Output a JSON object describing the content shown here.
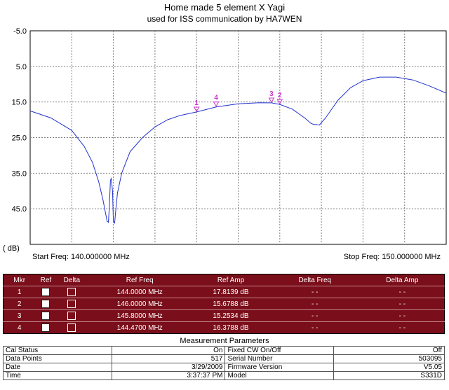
{
  "header": {
    "title": "Home made 5 element X Yagi",
    "subtitle": "used for ISS communication by HA7WEN"
  },
  "chart_data": {
    "type": "line",
    "title": "Home made 5 element X Yagi",
    "subtitle": "used for ISS communication by HA7WEN",
    "ylabel": "( dB)",
    "xlabel": "",
    "x_start_label": "Start Freq: 140.000000 MHz",
    "x_stop_label": "Stop Freq: 150.000000 MHz",
    "xlim": [
      140,
      150
    ],
    "ylim": [
      -5,
      55
    ],
    "y_inverted": true,
    "y_ticks": [
      -5.0,
      5.0,
      15.0,
      25.0,
      35.0,
      45.0
    ],
    "y_tick_labels": [
      "-5.0",
      "5.0",
      "15.0",
      "25.0",
      "35.0",
      "45.0"
    ],
    "grid": true,
    "line_color": "#2233cc",
    "marker_color": "#cc33cc",
    "series": [
      {
        "x": [
          140.0,
          140.5,
          141.0,
          141.3,
          141.5,
          141.65,
          141.75,
          141.8,
          141.85,
          141.88,
          141.9,
          141.93,
          141.95,
          141.98,
          142.0,
          142.03,
          142.06,
          142.1,
          142.2,
          142.4,
          142.7,
          143.0,
          143.3,
          143.6,
          144.0,
          144.47,
          145.0,
          145.5,
          145.8,
          146.0,
          146.3,
          146.6,
          146.75,
          146.82,
          146.88,
          146.95,
          147.1,
          147.4,
          147.7,
          148.0,
          148.4,
          148.8,
          149.2,
          149.6,
          150.0
        ],
        "y": [
          17.5,
          19.5,
          23.0,
          27.5,
          32.0,
          37.5,
          42.5,
          45.5,
          48.5,
          48.8,
          45.0,
          37.0,
          36.5,
          40.0,
          48.5,
          49.0,
          45.0,
          40.5,
          35.0,
          29.0,
          25.0,
          22.0,
          20.0,
          18.8,
          17.8,
          16.4,
          15.5,
          15.2,
          15.25,
          15.68,
          17.0,
          19.5,
          21.0,
          21.3,
          21.3,
          21.5,
          19.5,
          14.5,
          11.0,
          9.0,
          8.0,
          8.0,
          8.8,
          10.5,
          12.5
        ]
      }
    ],
    "markers": [
      {
        "label": "1",
        "x": 144.0,
        "y": 17.8139
      },
      {
        "label": "2",
        "x": 146.0,
        "y": 15.6788
      },
      {
        "label": "3",
        "x": 145.8,
        "y": 15.2534
      },
      {
        "label": "4",
        "x": 144.47,
        "y": 16.3788
      }
    ]
  },
  "marker_table": {
    "headers": [
      "Mkr",
      "Ref",
      "Delta",
      "Ref Freq",
      "Ref Amp",
      "Delta Freq",
      "Delta Amp"
    ],
    "rows": [
      {
        "mkr": "1",
        "ref_freq": "144.0000 MHz",
        "ref_amp": "17.8139 dB",
        "delta_freq": "- -",
        "delta_amp": "- -"
      },
      {
        "mkr": "2",
        "ref_freq": "146.0000 MHz",
        "ref_amp": "15.6788 dB",
        "delta_freq": "- -",
        "delta_amp": "- -"
      },
      {
        "mkr": "3",
        "ref_freq": "145.8000 MHz",
        "ref_amp": "15.2534 dB",
        "delta_freq": "- -",
        "delta_amp": "- -"
      },
      {
        "mkr": "4",
        "ref_freq": "144.4700 MHz",
        "ref_amp": "16.3788 dB",
        "delta_freq": "- -",
        "delta_amp": "- -"
      }
    ]
  },
  "measurement": {
    "title": "Measurement Parameters",
    "rows": [
      {
        "l1": "Cal Status",
        "v1": "On",
        "l2": "Fixed CW On/Off",
        "v2": "Off"
      },
      {
        "l1": "Data Points",
        "v1": "517",
        "l2": "Serial Number",
        "v2": "503095"
      },
      {
        "l1": "Date",
        "v1": "3/29/2009",
        "l2": "Firmware Version",
        "v2": "V5.05"
      },
      {
        "l1": "Time",
        "v1": "3:37:37 PM",
        "l2": "Model",
        "v2": "S331D"
      }
    ]
  }
}
